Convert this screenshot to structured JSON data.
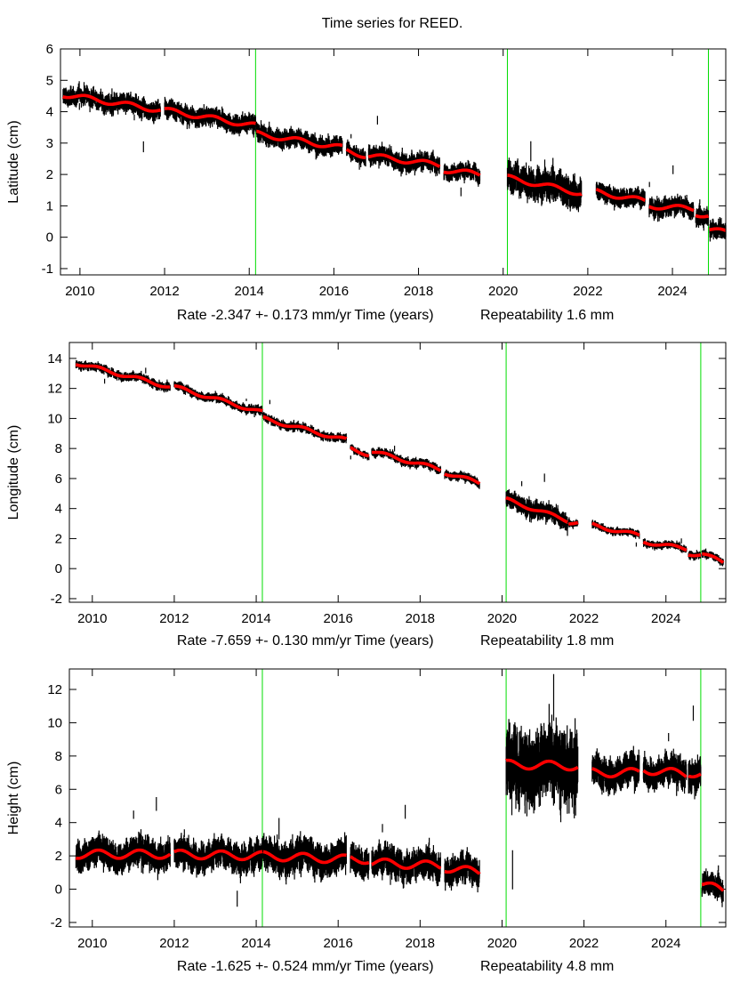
{
  "chart_data": {
    "type": "scatter",
    "title": "Time series for REED.",
    "xlabel": "Time (years)",
    "xticks": [
      2010,
      2012,
      2014,
      2016,
      2018,
      2020,
      2022,
      2024
    ],
    "event_lines": [
      2014.15,
      2020.1,
      2024.85
    ],
    "colors": {
      "data": "#000000",
      "model": "#ff0000",
      "events": "#00dd00"
    },
    "panels": [
      {
        "ylabel": "Latitude (cm)",
        "rate": "Rate -2.347 +- 0.173 mm/yr",
        "repeatability": "Repeatability 1.6 mm",
        "xlim": [
          2009.54,
          2025.26
        ],
        "ylim": [
          -1.2,
          6
        ],
        "yticks": [
          -1,
          0,
          1,
          2,
          3,
          4,
          5,
          6
        ],
        "annual_amplitude": 0.08,
        "segments": [
          {
            "start": 2009.6,
            "end": 2011.9,
            "from": 4.55,
            "to": 4.05,
            "noise": 0.15
          },
          {
            "start": 2012.0,
            "end": 2014.15,
            "from": 4.05,
            "to": 3.55,
            "noise": 0.15
          },
          {
            "start": 2014.17,
            "end": 2016.2,
            "from": 3.3,
            "to": 2.85,
            "noise": 0.15
          },
          {
            "start": 2016.3,
            "end": 2016.75,
            "from": 2.75,
            "to": 2.6,
            "noise": 0.12
          },
          {
            "start": 2016.82,
            "end": 2018.5,
            "from": 2.6,
            "to": 2.3,
            "noise": 0.15
          },
          {
            "start": 2018.6,
            "end": 2019.45,
            "from": 2.15,
            "to": 2.0,
            "noise": 0.13
          },
          {
            "start": 2020.1,
            "end": 2021.85,
            "from": 1.9,
            "to": 1.4,
            "noise": 0.25
          },
          {
            "start": 2022.2,
            "end": 2023.35,
            "from": 1.45,
            "to": 1.15,
            "noise": 0.15
          },
          {
            "start": 2023.45,
            "end": 2024.5,
            "from": 1.0,
            "to": 0.9,
            "noise": 0.15
          },
          {
            "start": 2024.55,
            "end": 2024.85,
            "from": 0.75,
            "to": 0.7,
            "noise": 0.15
          },
          {
            "start": 2024.88,
            "end": 2025.26,
            "from": 0.25,
            "to": 0.15,
            "noise": 0.15
          }
        ]
      },
      {
        "ylabel": "Longitude (cm)",
        "rate": "Rate -7.659 +- 0.130 mm/yr",
        "repeatability": "Repeatability 1.8 mm",
        "xlim": [
          2009.44,
          2025.46
        ],
        "ylim": [
          -2.24,
          15.06
        ],
        "yticks": [
          -2,
          0,
          2,
          4,
          6,
          8,
          10,
          12,
          14
        ],
        "annual_amplitude": 0.12,
        "segments": [
          {
            "start": 2009.6,
            "end": 2011.9,
            "from": 13.7,
            "to": 12.1,
            "noise": 0.15
          },
          {
            "start": 2012.0,
            "end": 2014.15,
            "from": 12.1,
            "to": 10.4,
            "noise": 0.15
          },
          {
            "start": 2014.17,
            "end": 2016.2,
            "from": 10.0,
            "to": 8.55,
            "noise": 0.15
          },
          {
            "start": 2016.3,
            "end": 2016.75,
            "from": 8.0,
            "to": 7.6,
            "noise": 0.12
          },
          {
            "start": 2016.82,
            "end": 2018.5,
            "from": 7.8,
            "to": 6.6,
            "noise": 0.15
          },
          {
            "start": 2018.6,
            "end": 2019.45,
            "from": 6.4,
            "to": 5.7,
            "noise": 0.15
          },
          {
            "start": 2020.1,
            "end": 2021.6,
            "from": 4.6,
            "to": 3.2,
            "noise": 0.3
          },
          {
            "start": 2021.62,
            "end": 2021.85,
            "from": 3.1,
            "to": 3.1,
            "noise": 0.12
          },
          {
            "start": 2022.2,
            "end": 2023.35,
            "from": 2.9,
            "to": 2.2,
            "noise": 0.13
          },
          {
            "start": 2023.45,
            "end": 2024.5,
            "from": 1.8,
            "to": 1.3,
            "noise": 0.13
          },
          {
            "start": 2024.55,
            "end": 2024.85,
            "from": 1.0,
            "to": 0.95,
            "noise": 0.13
          },
          {
            "start": 2024.88,
            "end": 2025.4,
            "from": 1.0,
            "to": 0.4,
            "noise": 0.13
          }
        ]
      },
      {
        "ylabel": "Height (cm)",
        "rate": "Rate -1.625 +- 0.524 mm/yr",
        "repeatability": "Repeatability 4.8 mm",
        "xlim": [
          2009.44,
          2025.46
        ],
        "ylim": [
          -2.27,
          13.23
        ],
        "yticks": [
          -2,
          0,
          2,
          4,
          6,
          8,
          10,
          12
        ],
        "annual_amplitude": 0.25,
        "segments": [
          {
            "start": 2009.6,
            "end": 2011.9,
            "from": 2.1,
            "to": 2.1,
            "noise": 0.45
          },
          {
            "start": 2012.0,
            "end": 2014.15,
            "from": 2.1,
            "to": 2.0,
            "noise": 0.45
          },
          {
            "start": 2014.17,
            "end": 2016.2,
            "from": 2.0,
            "to": 1.8,
            "noise": 0.5
          },
          {
            "start": 2016.3,
            "end": 2016.75,
            "from": 1.8,
            "to": 1.8,
            "noise": 0.45
          },
          {
            "start": 2016.82,
            "end": 2018.5,
            "from": 1.6,
            "to": 1.4,
            "noise": 0.45
          },
          {
            "start": 2018.6,
            "end": 2019.45,
            "from": 1.3,
            "to": 1.0,
            "noise": 0.45
          },
          {
            "start": 2020.1,
            "end": 2021.85,
            "from": 7.5,
            "to": 7.4,
            "noise": 1.1
          },
          {
            "start": 2022.2,
            "end": 2023.35,
            "from": 7.0,
            "to": 7.0,
            "noise": 0.5
          },
          {
            "start": 2023.45,
            "end": 2024.5,
            "from": 7.2,
            "to": 6.9,
            "noise": 0.45
          },
          {
            "start": 2024.55,
            "end": 2024.85,
            "from": 7.0,
            "to": 7.0,
            "noise": 0.5
          },
          {
            "start": 2024.88,
            "end": 2025.4,
            "from": 0.3,
            "to": -0.1,
            "noise": 0.35
          }
        ]
      }
    ]
  }
}
